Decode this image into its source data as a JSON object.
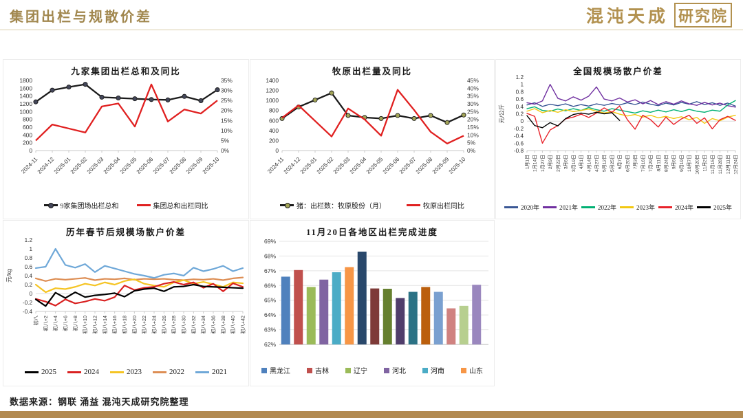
{
  "header": {
    "title": "集团出栏与规散价差",
    "logo_text": "混沌天成",
    "logo_badge": "研究院"
  },
  "footer": {
    "source": "数据来源：钢联 涌益 混沌天成研究院整理"
  },
  "colors": {
    "accent_gold": "#A1874E",
    "header_rule": "#D8CBA6",
    "bottom_bar": "#B28A50"
  },
  "chart_data": [
    {
      "type": "line",
      "title": "九家集团出栏总和及同比",
      "categories": [
        "2024-11",
        "2024-12",
        "2025-01",
        "2025-02",
        "2025-03",
        "2025-04",
        "2025-05",
        "2025-06",
        "2025-07",
        "2025-08",
        "2025-09",
        "2025-10"
      ],
      "left_axis": {
        "min": 0,
        "max": 1800,
        "step": 200,
        "format": "number"
      },
      "right_axis": {
        "min": 0,
        "max": 35,
        "step": 5,
        "format": "percent"
      },
      "grid": false,
      "legend_position": "bottom",
      "series": [
        {
          "name": "9家集团场出栏总和",
          "axis": "left",
          "color": "#1A1A1A",
          "marker": "#44475A",
          "values": [
            1250,
            1550,
            1630,
            1700,
            1370,
            1350,
            1330,
            1310,
            1300,
            1390,
            1280,
            1560
          ]
        },
        {
          "name": "集团总和出栏同比",
          "axis": "right",
          "color": "#E02020",
          "values": [
            5,
            13,
            11,
            9,
            22,
            23.5,
            12,
            33,
            14.5,
            20.5,
            18.5,
            25
          ]
        }
      ]
    },
    {
      "type": "line",
      "title": "牧原出栏量及同比",
      "categories": [
        "2024-11",
        "2024-12",
        "2025-01",
        "2025-02",
        "2025-03",
        "2025-04",
        "2025-05",
        "2025-06",
        "2025-07",
        "2025-08",
        "2025-09",
        "2025-10"
      ],
      "left_axis": {
        "min": 0,
        "max": 1400,
        "step": 200,
        "format": "number"
      },
      "right_axis": {
        "min": 0,
        "max": 45,
        "step": 5,
        "format": "percent"
      },
      "grid": false,
      "legend_position": "bottom",
      "series": [
        {
          "name": "猪：出栏数：牧原股份（月）",
          "axis": "left",
          "color": "#1A1A1A",
          "marker": "#A2A457",
          "values": [
            640,
            870,
            1010,
            1150,
            700,
            660,
            640,
            700,
            640,
            700,
            560,
            710
          ]
        },
        {
          "name": "牧原出栏同比",
          "axis": "right",
          "color": "#E02020",
          "values": [
            21,
            29,
            19,
            9,
            27,
            20,
            9.5,
            39,
            26,
            12,
            4.5,
            9.5
          ]
        }
      ]
    },
    {
      "type": "line",
      "title": "全国规模场散户价差",
      "ylabel": "元/公斤",
      "y_axis": {
        "min": -0.8,
        "max": 1.2,
        "step": 0.2
      },
      "grid": false,
      "legend_position": "bottom",
      "categories": [
        "1月1日",
        "1月14日",
        "1月27日",
        "2月9日",
        "2月22日",
        "3月6日",
        "3月19日",
        "4月1日",
        "4月14日",
        "4月27日",
        "5月12日",
        "5月25日",
        "6月7日",
        "6月20日",
        "7月3日",
        "7月16日",
        "7月29日",
        "8月11日",
        "8月24日",
        "9月6日",
        "9月19日",
        "10月7日",
        "10月20日",
        "11月2日",
        "11月15日",
        "11月28日",
        "12月11日",
        "12月24日"
      ],
      "series": [
        {
          "name": "2020年",
          "color": "#3A5795",
          "values": [
            0.44,
            0.5,
            0.4,
            0.46,
            0.42,
            0.47,
            0.4,
            0.45,
            0.41,
            0.47,
            0.43,
            0.48,
            0.44,
            0.5,
            0.45,
            0.52,
            0.46,
            0.42,
            0.49,
            0.44,
            0.51,
            0.46,
            0.53,
            0.45,
            0.5,
            0.43,
            0.49,
            0.41
          ]
        },
        {
          "name": "2021年",
          "color": "#7030A0",
          "values": [
            0.5,
            0.46,
            0.55,
            1.0,
            0.62,
            0.55,
            0.66,
            0.57,
            0.68,
            0.93,
            0.6,
            0.55,
            0.63,
            0.52,
            0.58,
            0.47,
            0.56,
            0.45,
            0.53,
            0.46,
            0.55,
            0.47,
            0.43,
            0.51,
            0.44,
            0.49,
            0.42,
            0.38
          ]
        },
        {
          "name": "2022年",
          "color": "#00B073",
          "values": [
            0.34,
            0.39,
            0.29,
            0.27,
            0.33,
            0.28,
            0.34,
            0.29,
            0.37,
            0.31,
            0.27,
            0.34,
            0.3,
            0.26,
            0.22,
            0.28,
            0.24,
            0.3,
            0.25,
            0.31,
            0.26,
            0.32,
            0.27,
            0.24,
            0.3,
            0.27,
            0.44,
            0.56
          ]
        },
        {
          "name": "2023年",
          "color": "#F2C811",
          "values": [
            0.27,
            0.34,
            0.23,
            0.29,
            0.24,
            0.31,
            0.26,
            0.29,
            0.33,
            0.27,
            0.22,
            0.26,
            0.19,
            0.14,
            0.18,
            0.11,
            0.16,
            0.09,
            0.13,
            0.07,
            0.12,
            0.04,
            0.1,
            -0.06,
            0.07,
            0.01,
            0.11,
            0.16
          ]
        },
        {
          "name": "2024年",
          "color": "#E8222A",
          "values": [
            0.21,
            0.13,
            -0.6,
            -0.24,
            -0.12,
            0.06,
            0.11,
            0.19,
            0.1,
            0.22,
            0.36,
            0.24,
            0.41,
            0.04,
            -0.22,
            0.16,
            0.04,
            -0.16,
            0.11,
            -0.09,
            0.06,
            0.16,
            -0.06,
            0.09,
            -0.21,
            0.04,
            0.13,
            0.02
          ]
        },
        {
          "name": "2025年",
          "color": "#000000",
          "values": [
            0.15,
            -0.12,
            -0.18,
            -0.04,
            -0.13,
            0.07,
            0.18,
            0.22,
            0.19,
            0.24,
            0.2,
            0.23,
            0.02
          ]
        }
      ]
    },
    {
      "type": "line",
      "title": "历年春节后规模场散户价差",
      "ylabel": "元/kg",
      "y_axis": {
        "min": -0.4,
        "max": 1.2,
        "step": 0.2
      },
      "grid": false,
      "legend_position": "bottom",
      "draw": "reverse",
      "categories": [
        "初八",
        "初八+2",
        "初八+4",
        "初八+6",
        "初八+8",
        "初八+10",
        "初八+12",
        "初八+14",
        "初八+16",
        "初八+18",
        "初八+20",
        "初八+22",
        "初八+24",
        "初八+26",
        "初八+28",
        "初八+30",
        "初八+32",
        "初八+34",
        "初八+36",
        "初八+38",
        "初八+40",
        "初八+42"
      ],
      "series": [
        {
          "name": "2025",
          "color": "#000000",
          "values": [
            -0.13,
            -0.28,
            0.02,
            -0.1,
            0.03,
            -0.08,
            -0.04,
            -0.02,
            0.01,
            -0.07,
            0.06,
            0.1,
            0.12,
            0.05,
            0.15,
            0.16,
            0.2,
            0.16,
            0.15,
            0.14,
            0.13,
            0.12
          ]
        },
        {
          "name": "2024",
          "color": "#D92121",
          "values": [
            -0.12,
            -0.18,
            -0.27,
            -0.13,
            -0.22,
            -0.18,
            -0.12,
            -0.16,
            -0.08,
            0.18,
            0.08,
            0.13,
            0.15,
            0.22,
            0.26,
            0.2,
            0.25,
            0.13,
            0.22,
            0.05,
            0.23,
            0.15
          ]
        },
        {
          "name": "2023",
          "color": "#F5C423",
          "values": [
            0.2,
            0.03,
            0.12,
            0.1,
            0.15,
            0.22,
            0.18,
            0.25,
            0.2,
            0.28,
            0.32,
            0.22,
            0.18,
            0.15,
            0.25,
            0.3,
            0.22,
            0.26,
            0.21,
            0.15,
            0.25,
            0.23
          ]
        },
        {
          "name": "2022",
          "color": "#DD8E54",
          "values": [
            0.34,
            0.28,
            0.33,
            0.31,
            0.33,
            0.35,
            0.3,
            0.33,
            0.32,
            0.34,
            0.31,
            0.33,
            0.32,
            0.33,
            0.31,
            0.3,
            0.32,
            0.31,
            0.33,
            0.3,
            0.34,
            0.36
          ]
        },
        {
          "name": "2021",
          "color": "#6FA8D8",
          "values": [
            0.57,
            0.6,
            1.0,
            0.64,
            0.58,
            0.66,
            0.48,
            0.62,
            0.56,
            0.5,
            0.44,
            0.4,
            0.35,
            0.42,
            0.45,
            0.4,
            0.58,
            0.5,
            0.55,
            0.62,
            0.5,
            0.57
          ]
        }
      ]
    },
    {
      "type": "bar",
      "title": "11月20日各地区出栏完成进度",
      "y_axis": {
        "min": 62,
        "max": 69,
        "step": 1,
        "format": "percent"
      },
      "grid": true,
      "legend_position": "bottom",
      "values": [
        66.6,
        67.05,
        65.9,
        66.4,
        66.9,
        67.25,
        68.3,
        65.8,
        65.78,
        65.15,
        65.57,
        65.9,
        65.57,
        64.45,
        64.62,
        66.05
      ],
      "bar_colors": [
        "#4F81BD",
        "#C0504D",
        "#9BBB59",
        "#8064A2",
        "#4BACC6",
        "#F79646",
        "#29486B",
        "#7E3A38",
        "#66802F",
        "#503D6B",
        "#2B7285",
        "#BB5F0D",
        "#7AA0D0",
        "#D08280",
        "#B7CF8F",
        "#9A87BE"
      ],
      "legend": [
        {
          "label": "黑龙江",
          "color": "#4F81BD"
        },
        {
          "label": "吉林",
          "color": "#C0504D"
        },
        {
          "label": "辽宁",
          "color": "#9BBB59"
        },
        {
          "label": "河北",
          "color": "#8064A2"
        },
        {
          "label": "河南",
          "color": "#4BACC6"
        },
        {
          "label": "山东",
          "color": "#F79646"
        }
      ]
    }
  ]
}
